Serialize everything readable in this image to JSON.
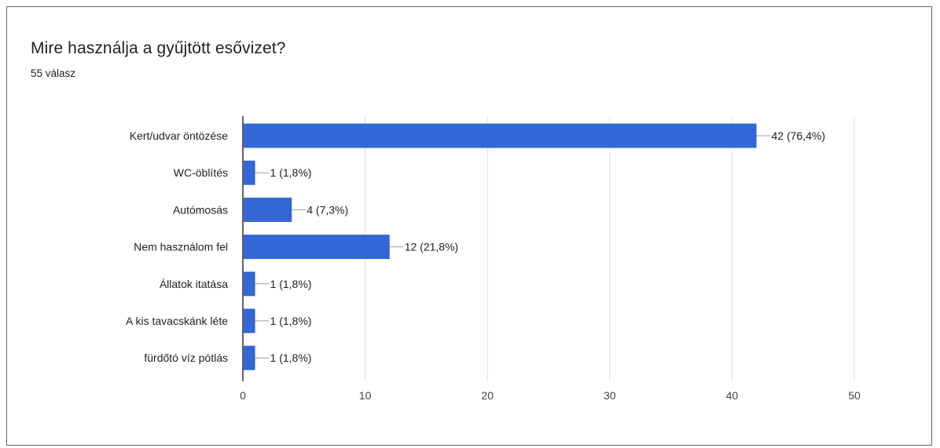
{
  "question": {
    "title": "Mire használja a gyűjtött esővizet?",
    "response_count": "55 válasz"
  },
  "colors": {
    "bar": "#3366d6",
    "grid": "#e0e0e0",
    "axis": "#5f6368",
    "leader": "#9e9e9e"
  },
  "chart_data": {
    "type": "bar",
    "orientation": "horizontal",
    "categories": [
      "Kert/udvar öntözése",
      "WC-öblítés",
      "Autómosás",
      "Nem használom fel",
      "Állatok itatása",
      "A kis tavacskánk léte",
      "fürdőtó víz pótlás"
    ],
    "values": [
      42,
      1,
      4,
      12,
      1,
      1,
      1
    ],
    "data_labels": [
      "42 (76,4%)",
      "1 (1,8%)",
      "4 (7,3%)",
      "12 (21,8%)",
      "1 (1,8%)",
      "1 (1,8%)",
      "1 (1,8%)"
    ],
    "xlim": [
      0,
      50
    ],
    "xticks": [
      0,
      10,
      20,
      30,
      40,
      50
    ],
    "xtick_labels": [
      "0",
      "10",
      "20",
      "30",
      "40",
      "50"
    ],
    "grid": true,
    "legend": "none"
  }
}
